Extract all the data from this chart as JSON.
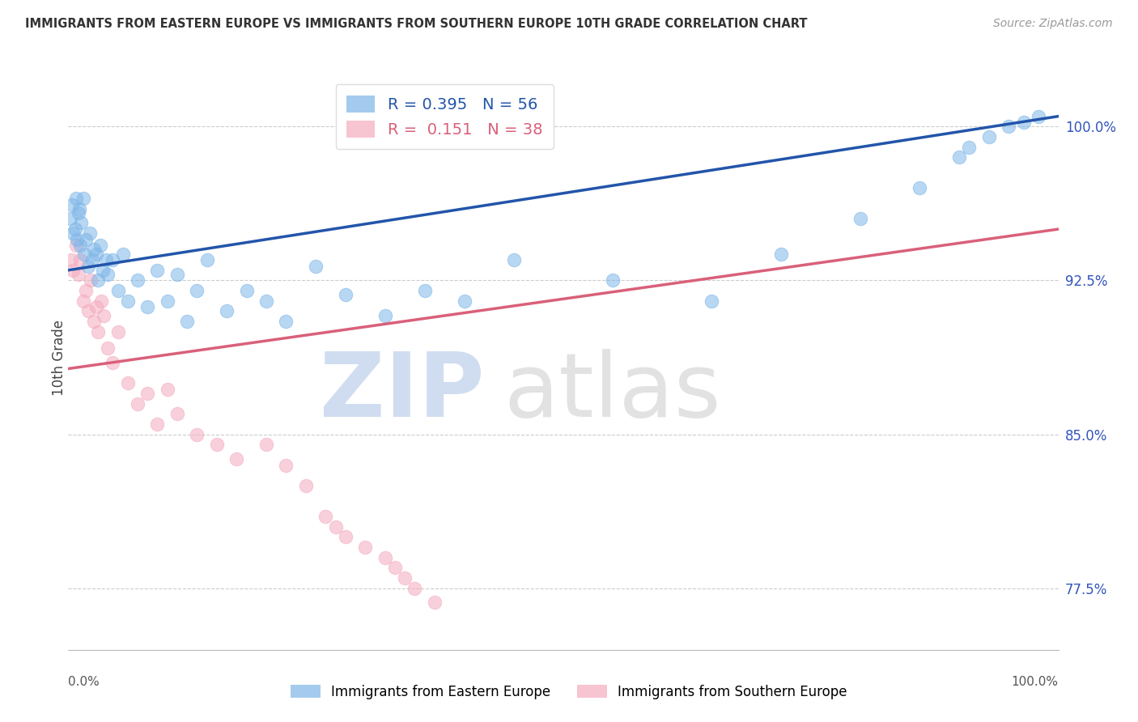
{
  "title": "IMMIGRANTS FROM EASTERN EUROPE VS IMMIGRANTS FROM SOUTHERN EUROPE 10TH GRADE CORRELATION CHART",
  "source": "Source: ZipAtlas.com",
  "ylabel": "10th Grade",
  "xlim": [
    0,
    100
  ],
  "ylim": [
    74.5,
    103
  ],
  "yticks": [
    77.5,
    85.0,
    92.5,
    100.0
  ],
  "ytick_labels": [
    "77.5%",
    "85.0%",
    "92.5%",
    "100.0%"
  ],
  "blue_R": 0.395,
  "blue_N": 56,
  "pink_R": 0.151,
  "pink_N": 38,
  "blue_color": "#7EB6E8",
  "pink_color": "#F4ABBE",
  "blue_line_color": "#2255AA",
  "pink_line_color": "#D9607A",
  "blue_line_y0": 93.0,
  "blue_line_y1": 100.5,
  "pink_line_y0": 88.2,
  "pink_line_y1": 95.0,
  "blue_scatter_x": [
    0.2,
    0.4,
    0.5,
    0.7,
    0.8,
    0.9,
    1.0,
    1.1,
    1.2,
    1.3,
    1.5,
    1.6,
    1.8,
    2.0,
    2.2,
    2.4,
    2.6,
    2.8,
    3.0,
    3.2,
    3.5,
    3.8,
    4.0,
    4.5,
    5.0,
    5.5,
    6.0,
    7.0,
    8.0,
    9.0,
    10.0,
    11.0,
    12.0,
    13.0,
    14.0,
    16.0,
    18.0,
    20.0,
    22.0,
    25.0,
    28.0,
    32.0,
    36.0,
    40.0,
    45.0,
    55.0,
    65.0,
    72.0,
    80.0,
    86.0,
    90.0,
    91.0,
    93.0,
    95.0,
    96.5,
    98.0
  ],
  "blue_scatter_y": [
    95.5,
    96.2,
    94.8,
    95.0,
    96.5,
    94.5,
    95.8,
    96.0,
    94.2,
    95.3,
    96.5,
    93.8,
    94.5,
    93.2,
    94.8,
    93.5,
    94.0,
    93.8,
    92.5,
    94.2,
    93.0,
    93.5,
    92.8,
    93.5,
    92.0,
    93.8,
    91.5,
    92.5,
    91.2,
    93.0,
    91.5,
    92.8,
    90.5,
    92.0,
    93.5,
    91.0,
    92.0,
    91.5,
    90.5,
    93.2,
    91.8,
    90.8,
    92.0,
    91.5,
    93.5,
    92.5,
    91.5,
    93.8,
    95.5,
    97.0,
    98.5,
    99.0,
    99.5,
    100.0,
    100.2,
    100.5
  ],
  "pink_scatter_x": [
    0.3,
    0.5,
    0.8,
    1.0,
    1.2,
    1.5,
    1.8,
    2.0,
    2.3,
    2.6,
    2.8,
    3.0,
    3.3,
    3.6,
    4.0,
    4.5,
    5.0,
    6.0,
    7.0,
    8.0,
    9.0,
    10.0,
    11.0,
    13.0,
    15.0,
    17.0,
    20.0,
    22.0,
    24.0,
    26.0,
    27.0,
    28.0,
    30.0,
    32.0,
    33.0,
    34.0,
    35.0,
    37.0
  ],
  "pink_scatter_y": [
    93.5,
    93.0,
    94.2,
    92.8,
    93.5,
    91.5,
    92.0,
    91.0,
    92.5,
    90.5,
    91.2,
    90.0,
    91.5,
    90.8,
    89.2,
    88.5,
    90.0,
    87.5,
    86.5,
    87.0,
    85.5,
    87.2,
    86.0,
    85.0,
    84.5,
    83.8,
    84.5,
    83.5,
    82.5,
    81.0,
    80.5,
    80.0,
    79.5,
    79.0,
    78.5,
    78.0,
    77.5,
    76.8
  ]
}
